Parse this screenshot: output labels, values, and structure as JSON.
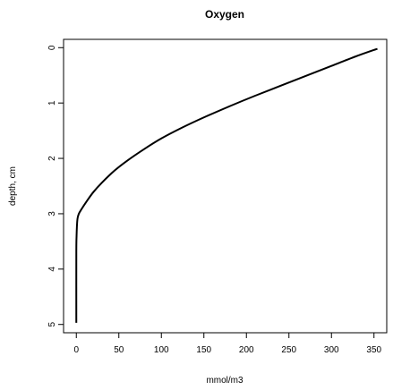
{
  "chart_data": {
    "type": "line",
    "title": "Oxygen",
    "xlabel": "mmol/m3",
    "ylabel": "depth, cm",
    "xlim": [
      -15,
      365
    ],
    "ylim": [
      5.15,
      -0.15
    ],
    "y_reversed": true,
    "grid": false,
    "xticks": [
      0,
      50,
      100,
      150,
      200,
      250,
      300,
      350
    ],
    "yticks": [
      0,
      1,
      2,
      3,
      4,
      5
    ],
    "series": [
      {
        "color": "#000000",
        "x": [
          354,
          330,
          300,
          270,
          240,
          210,
          180,
          150,
          125,
          100,
          80,
          60,
          45,
          30,
          20,
          12,
          6,
          3,
          1.5,
          0.8,
          0.3,
          0,
          0
        ],
        "y": [
          0.02,
          0.15,
          0.33,
          0.51,
          0.69,
          0.87,
          1.06,
          1.26,
          1.44,
          1.64,
          1.83,
          2.04,
          2.22,
          2.44,
          2.61,
          2.78,
          2.92,
          3.0,
          3.08,
          3.2,
          3.4,
          3.7,
          4.97
        ]
      }
    ]
  }
}
